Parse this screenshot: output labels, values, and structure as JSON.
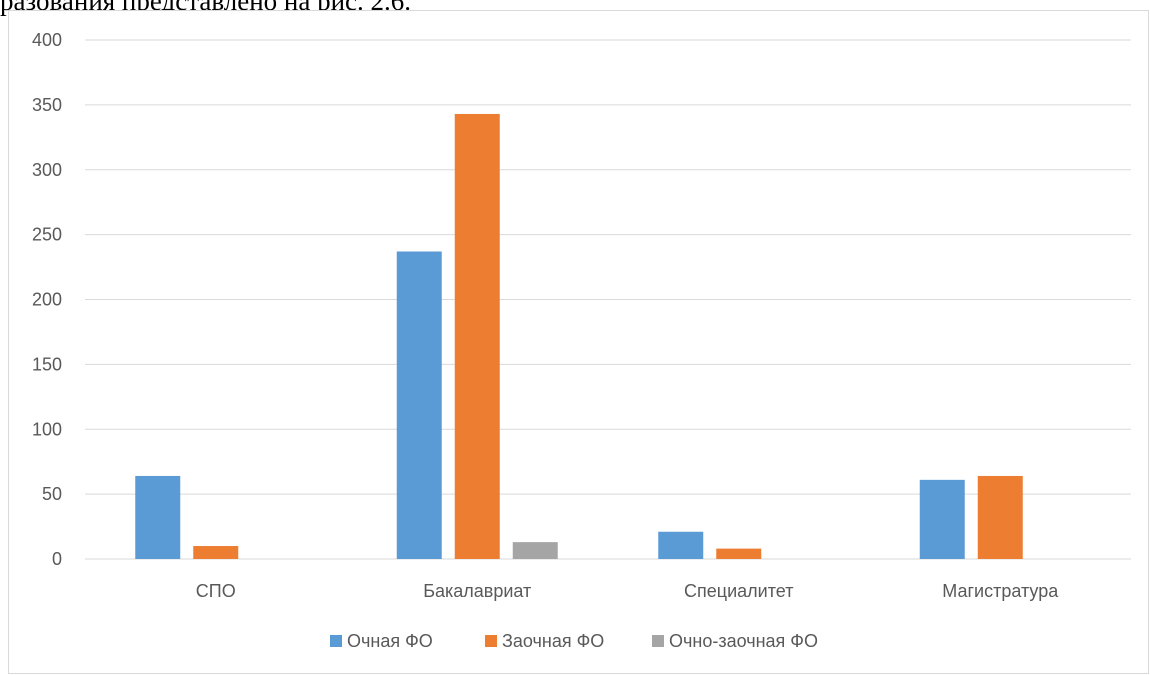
{
  "document": {
    "caption_text": "разования представлено на рис. 2.6."
  },
  "colors": {
    "series_1": "#5b9bd5",
    "series_2": "#ed7d31",
    "series_3": "#a5a5a5",
    "gridline": "#d9d9d9",
    "text": "#595959"
  },
  "chart_data": {
    "type": "bar",
    "title": "",
    "xlabel": "",
    "ylabel": "",
    "categories": [
      "СПО",
      "Бакалавриат",
      "Специалитет",
      "Магистратура"
    ],
    "series": [
      {
        "name": "Очная ФО",
        "values": [
          64,
          237,
          21,
          61
        ]
      },
      {
        "name": "Заочная ФО",
        "values": [
          10,
          343,
          8,
          64
        ]
      },
      {
        "name": "Очно-заочная ФО",
        "values": [
          0,
          13,
          0,
          0
        ]
      }
    ],
    "ylim": [
      0,
      400
    ],
    "yticks": [
      0,
      50,
      100,
      150,
      200,
      250,
      300,
      350,
      400
    ],
    "grid": true,
    "legend_position": "bottom"
  }
}
